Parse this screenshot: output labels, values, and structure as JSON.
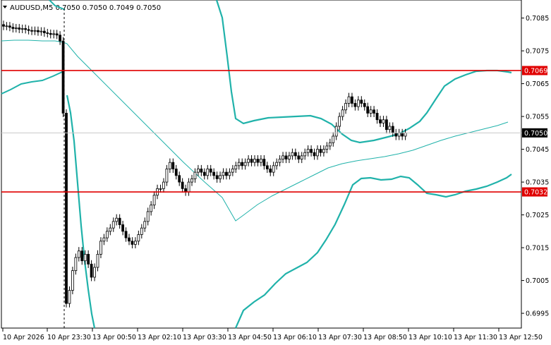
{
  "chart_data": {
    "type": "candlestick",
    "title": "AUDUSD,M5  0.7050 0.7050 0.7049 0.7050",
    "symbol": "AUDUSD",
    "timeframe": "M5",
    "ohlc_header": {
      "open": "0.7050",
      "high": "0.7050",
      "low": "0.7049",
      "close": "0.7050"
    },
    "xlabel": "",
    "ylabel": "",
    "ylim": [
      0.69905,
      0.70905
    ],
    "x_ticks": [
      "10 Apr 2026",
      "10 Apr 23:30",
      "13 Apr 00:50",
      "13 Apr 02:10",
      "13 Apr 03:30",
      "13 Apr 04:50",
      "13 Apr 06:10",
      "13 Apr 07:30",
      "13 Apr 08:50",
      "13 Apr 10:10",
      "13 Apr 11:30",
      "13 Apr 12:50"
    ],
    "y_ticks": [
      "0.7085",
      "0.7075",
      "0.7065",
      "0.7055",
      "0.7045",
      "0.7035",
      "0.7025",
      "0.7015",
      "0.7005",
      "0.6995"
    ],
    "horizontal_lines": [
      {
        "label": "0.7069",
        "value": 0.7069,
        "color": "#e00000"
      },
      {
        "label": "0.7032",
        "value": 0.7032,
        "color": "#e00000"
      }
    ],
    "current_price": {
      "label": "0.7050",
      "value": 0.705
    },
    "session_separator": "10 Apr 23:30",
    "closes_mid_section": [
      0.70825,
      0.70826,
      0.70822,
      0.70818,
      0.7082,
      0.70816,
      0.70818,
      0.70815,
      0.70812,
      0.7081,
      0.70812,
      0.70808,
      0.7081,
      0.70805,
      0.70803,
      0.708,
      0.70802,
      0.70798,
      0.7078,
      0.7056,
      0.6998,
      0.7002,
      0.7008,
      0.7012,
      0.7014,
      0.7011,
      0.7013,
      0.701,
      0.7006,
      0.7009,
      0.7013,
      0.7017,
      0.7018,
      0.702,
      0.7021,
      0.7023,
      0.7024,
      0.7022,
      0.702,
      0.7018,
      0.7017,
      0.7016,
      0.7017,
      0.7019,
      0.7021,
      0.7023,
      0.7026,
      0.7028,
      0.7031,
      0.7033,
      0.7033,
      0.7035,
      0.7039,
      0.7041,
      0.7039,
      0.7037,
      0.7035,
      0.7033,
      0.7032,
      0.7035,
      0.7036,
      0.7038,
      0.7039,
      0.7038,
      0.7037,
      0.7039,
      0.7038,
      0.7037,
      0.7036,
      0.7037,
      0.7038,
      0.7037,
      0.7038,
      0.7039,
      0.704,
      0.7041,
      0.704,
      0.7041,
      0.7042,
      0.7041,
      0.7042,
      0.7041,
      0.7042,
      0.704,
      0.7039,
      0.7038,
      0.704,
      0.7041,
      0.7042,
      0.7043,
      0.7042,
      0.7043,
      0.7044,
      0.7043,
      0.7042,
      0.7043,
      0.7044,
      0.7045,
      0.7044,
      0.7043,
      0.7045,
      0.7044,
      0.7045,
      0.7046,
      0.7047,
      0.7049,
      0.7052,
      0.7055,
      0.7057,
      0.7059,
      0.7061,
      0.7059,
      0.7058,
      0.706,
      0.7059,
      0.7058,
      0.7056,
      0.7057,
      0.7056,
      0.7054,
      0.7053,
      0.7054,
      0.7051,
      0.7052,
      0.705,
      0.7049,
      0.705,
      0.7049,
      0.705
    ],
    "indicators": {
      "moving_average": "thin teal line",
      "bollinger_bands": "upper and lower teal bands"
    },
    "colors": {
      "up": "#ffffff",
      "down": "#000000",
      "indicator": "#20b2aa",
      "level_line": "#e00000",
      "grid": "#c8c8c8"
    },
    "grid": false
  }
}
